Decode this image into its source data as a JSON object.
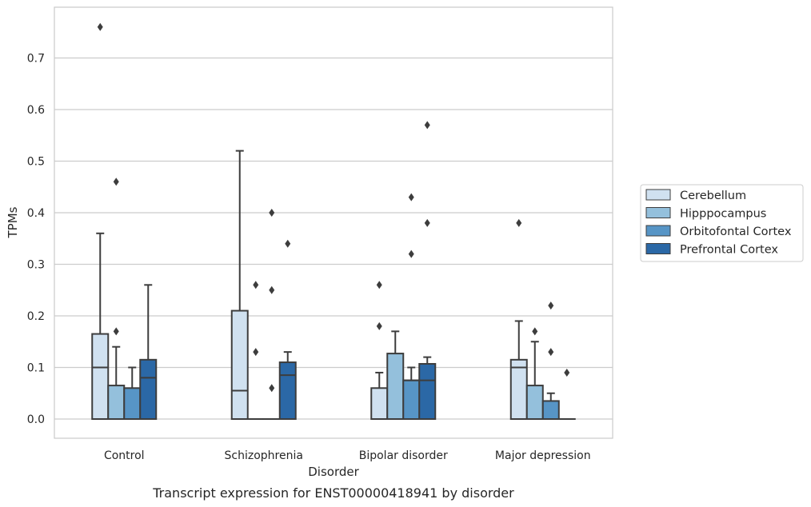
{
  "chart_data": {
    "type": "box",
    "caption": "Transcript expression for ENST00000418941 by disorder",
    "xlabel": "Disorder",
    "ylabel": "TPMs",
    "ylim": [
      -0.037,
      0.8
    ],
    "yticks": [
      0.0,
      0.1,
      0.2,
      0.3,
      0.4,
      0.5,
      0.6,
      0.7
    ],
    "ytick_labels": [
      "0.0",
      "0.1",
      "0.2",
      "0.3",
      "0.4",
      "0.5",
      "0.6",
      "0.7"
    ],
    "grid": "horizontal",
    "legend_position": "right",
    "categories": [
      "Control",
      "Schizophrenia",
      "Bipolar disorder",
      "Major depression"
    ],
    "series": [
      {
        "name": "Cerebellum",
        "color": "#d0e1f0",
        "boxes": [
          {
            "q1": 0.0,
            "median": 0.1,
            "q3": 0.165,
            "whisker_low": 0.0,
            "whisker_high": 0.36,
            "outliers": [
              0.76
            ]
          },
          {
            "q1": 0.0,
            "median": 0.055,
            "q3": 0.21,
            "whisker_low": 0.0,
            "whisker_high": 0.52,
            "outliers": []
          },
          {
            "q1": 0.0,
            "median": 0.0,
            "q3": 0.06,
            "whisker_low": 0.0,
            "whisker_high": 0.09,
            "outliers": [
              0.18,
              0.26
            ]
          },
          {
            "q1": 0.0,
            "median": 0.1,
            "q3": 0.115,
            "whisker_low": 0.0,
            "whisker_high": 0.19,
            "outliers": [
              0.38
            ]
          }
        ]
      },
      {
        "name": "Hipppocampus",
        "color": "#94c0dc",
        "boxes": [
          {
            "q1": 0.0,
            "median": 0.0,
            "q3": 0.065,
            "whisker_low": 0.0,
            "whisker_high": 0.14,
            "outliers": [
              0.17,
              0.46
            ]
          },
          {
            "q1": 0.0,
            "median": 0.0,
            "q3": 0.0,
            "whisker_low": 0.0,
            "whisker_high": 0.0,
            "outliers": [
              0.13,
              0.26
            ]
          },
          {
            "q1": 0.0,
            "median": 0.0,
            "q3": 0.127,
            "whisker_low": 0.0,
            "whisker_high": 0.17,
            "outliers": []
          },
          {
            "q1": 0.0,
            "median": 0.0,
            "q3": 0.065,
            "whisker_low": 0.0,
            "whisker_high": 0.15,
            "outliers": [
              0.17
            ]
          }
        ]
      },
      {
        "name": "Orbitofontal Cortex",
        "color": "#5795c6",
        "boxes": [
          {
            "q1": 0.0,
            "median": 0.0,
            "q3": 0.06,
            "whisker_low": 0.0,
            "whisker_high": 0.1,
            "outliers": []
          },
          {
            "q1": 0.0,
            "median": 0.0,
            "q3": 0.0,
            "whisker_low": 0.0,
            "whisker_high": 0.0,
            "outliers": [
              0.06,
              0.25,
              0.4
            ]
          },
          {
            "q1": 0.0,
            "median": 0.075,
            "q3": 0.075,
            "whisker_low": 0.0,
            "whisker_high": 0.1,
            "outliers": [
              0.32,
              0.43
            ]
          },
          {
            "q1": 0.0,
            "median": 0.0,
            "q3": 0.035,
            "whisker_low": 0.0,
            "whisker_high": 0.05,
            "outliers": [
              0.13,
              0.22
            ]
          }
        ]
      },
      {
        "name": "Prefrontal Cortex",
        "color": "#2b68a6",
        "boxes": [
          {
            "q1": 0.0,
            "median": 0.08,
            "q3": 0.115,
            "whisker_low": 0.0,
            "whisker_high": 0.26,
            "outliers": []
          },
          {
            "q1": 0.0,
            "median": 0.085,
            "q3": 0.11,
            "whisker_low": 0.0,
            "whisker_high": 0.13,
            "outliers": [
              0.34
            ]
          },
          {
            "q1": 0.0,
            "median": 0.075,
            "q3": 0.107,
            "whisker_low": 0.0,
            "whisker_high": 0.12,
            "outliers": [
              0.38,
              0.57
            ]
          },
          {
            "q1": 0.0,
            "median": 0.0,
            "q3": 0.0,
            "whisker_low": 0.0,
            "whisker_high": 0.0,
            "outliers": [
              0.09
            ]
          }
        ]
      }
    ]
  }
}
